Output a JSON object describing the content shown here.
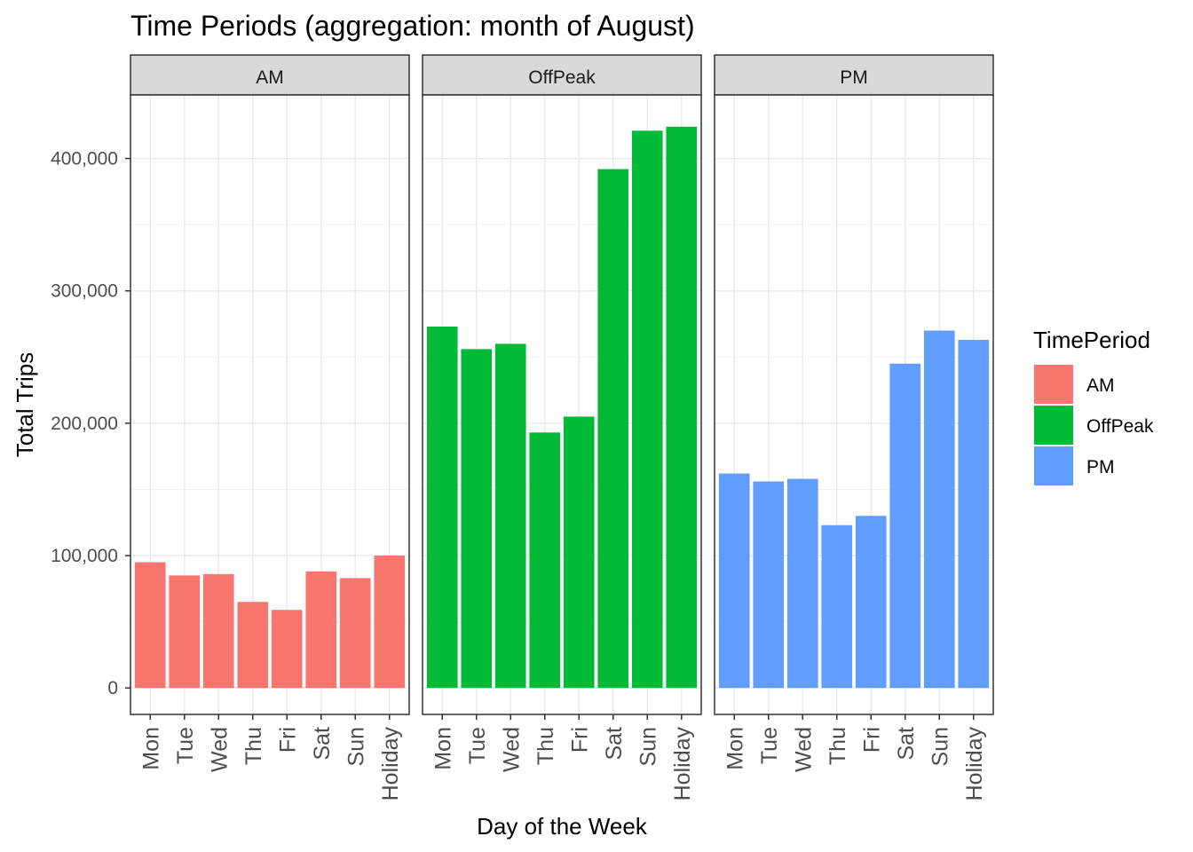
{
  "chart_data": {
    "type": "bar",
    "title": "Time Periods (aggregation: month of August)",
    "xlabel": "Day of the Week",
    "ylabel": "Total Trips",
    "categories": [
      "Mon",
      "Tue",
      "Wed",
      "Thu",
      "Fri",
      "Sat",
      "Sun",
      "Holiday"
    ],
    "ylim": [
      -20000,
      448000
    ],
    "yticks": [
      0,
      100000,
      200000,
      300000,
      400000
    ],
    "ytick_labels": [
      "0",
      "100,000",
      "200,000",
      "300,000",
      "400,000"
    ],
    "grid": true,
    "facets": [
      "AM",
      "OffPeak",
      "PM"
    ],
    "series": [
      {
        "name": "AM",
        "color": "#F8766D",
        "values": [
          95000,
          85000,
          86000,
          65000,
          59000,
          88000,
          83000,
          100000
        ]
      },
      {
        "name": "OffPeak",
        "color": "#00BA38",
        "values": [
          273000,
          256000,
          260000,
          193000,
          205000,
          392000,
          421000,
          424000
        ]
      },
      {
        "name": "PM",
        "color": "#619CFF",
        "values": [
          162000,
          156000,
          158000,
          123000,
          130000,
          245000,
          270000,
          263000
        ]
      }
    ],
    "legend": {
      "title": "TimePeriod",
      "position": "right"
    }
  }
}
